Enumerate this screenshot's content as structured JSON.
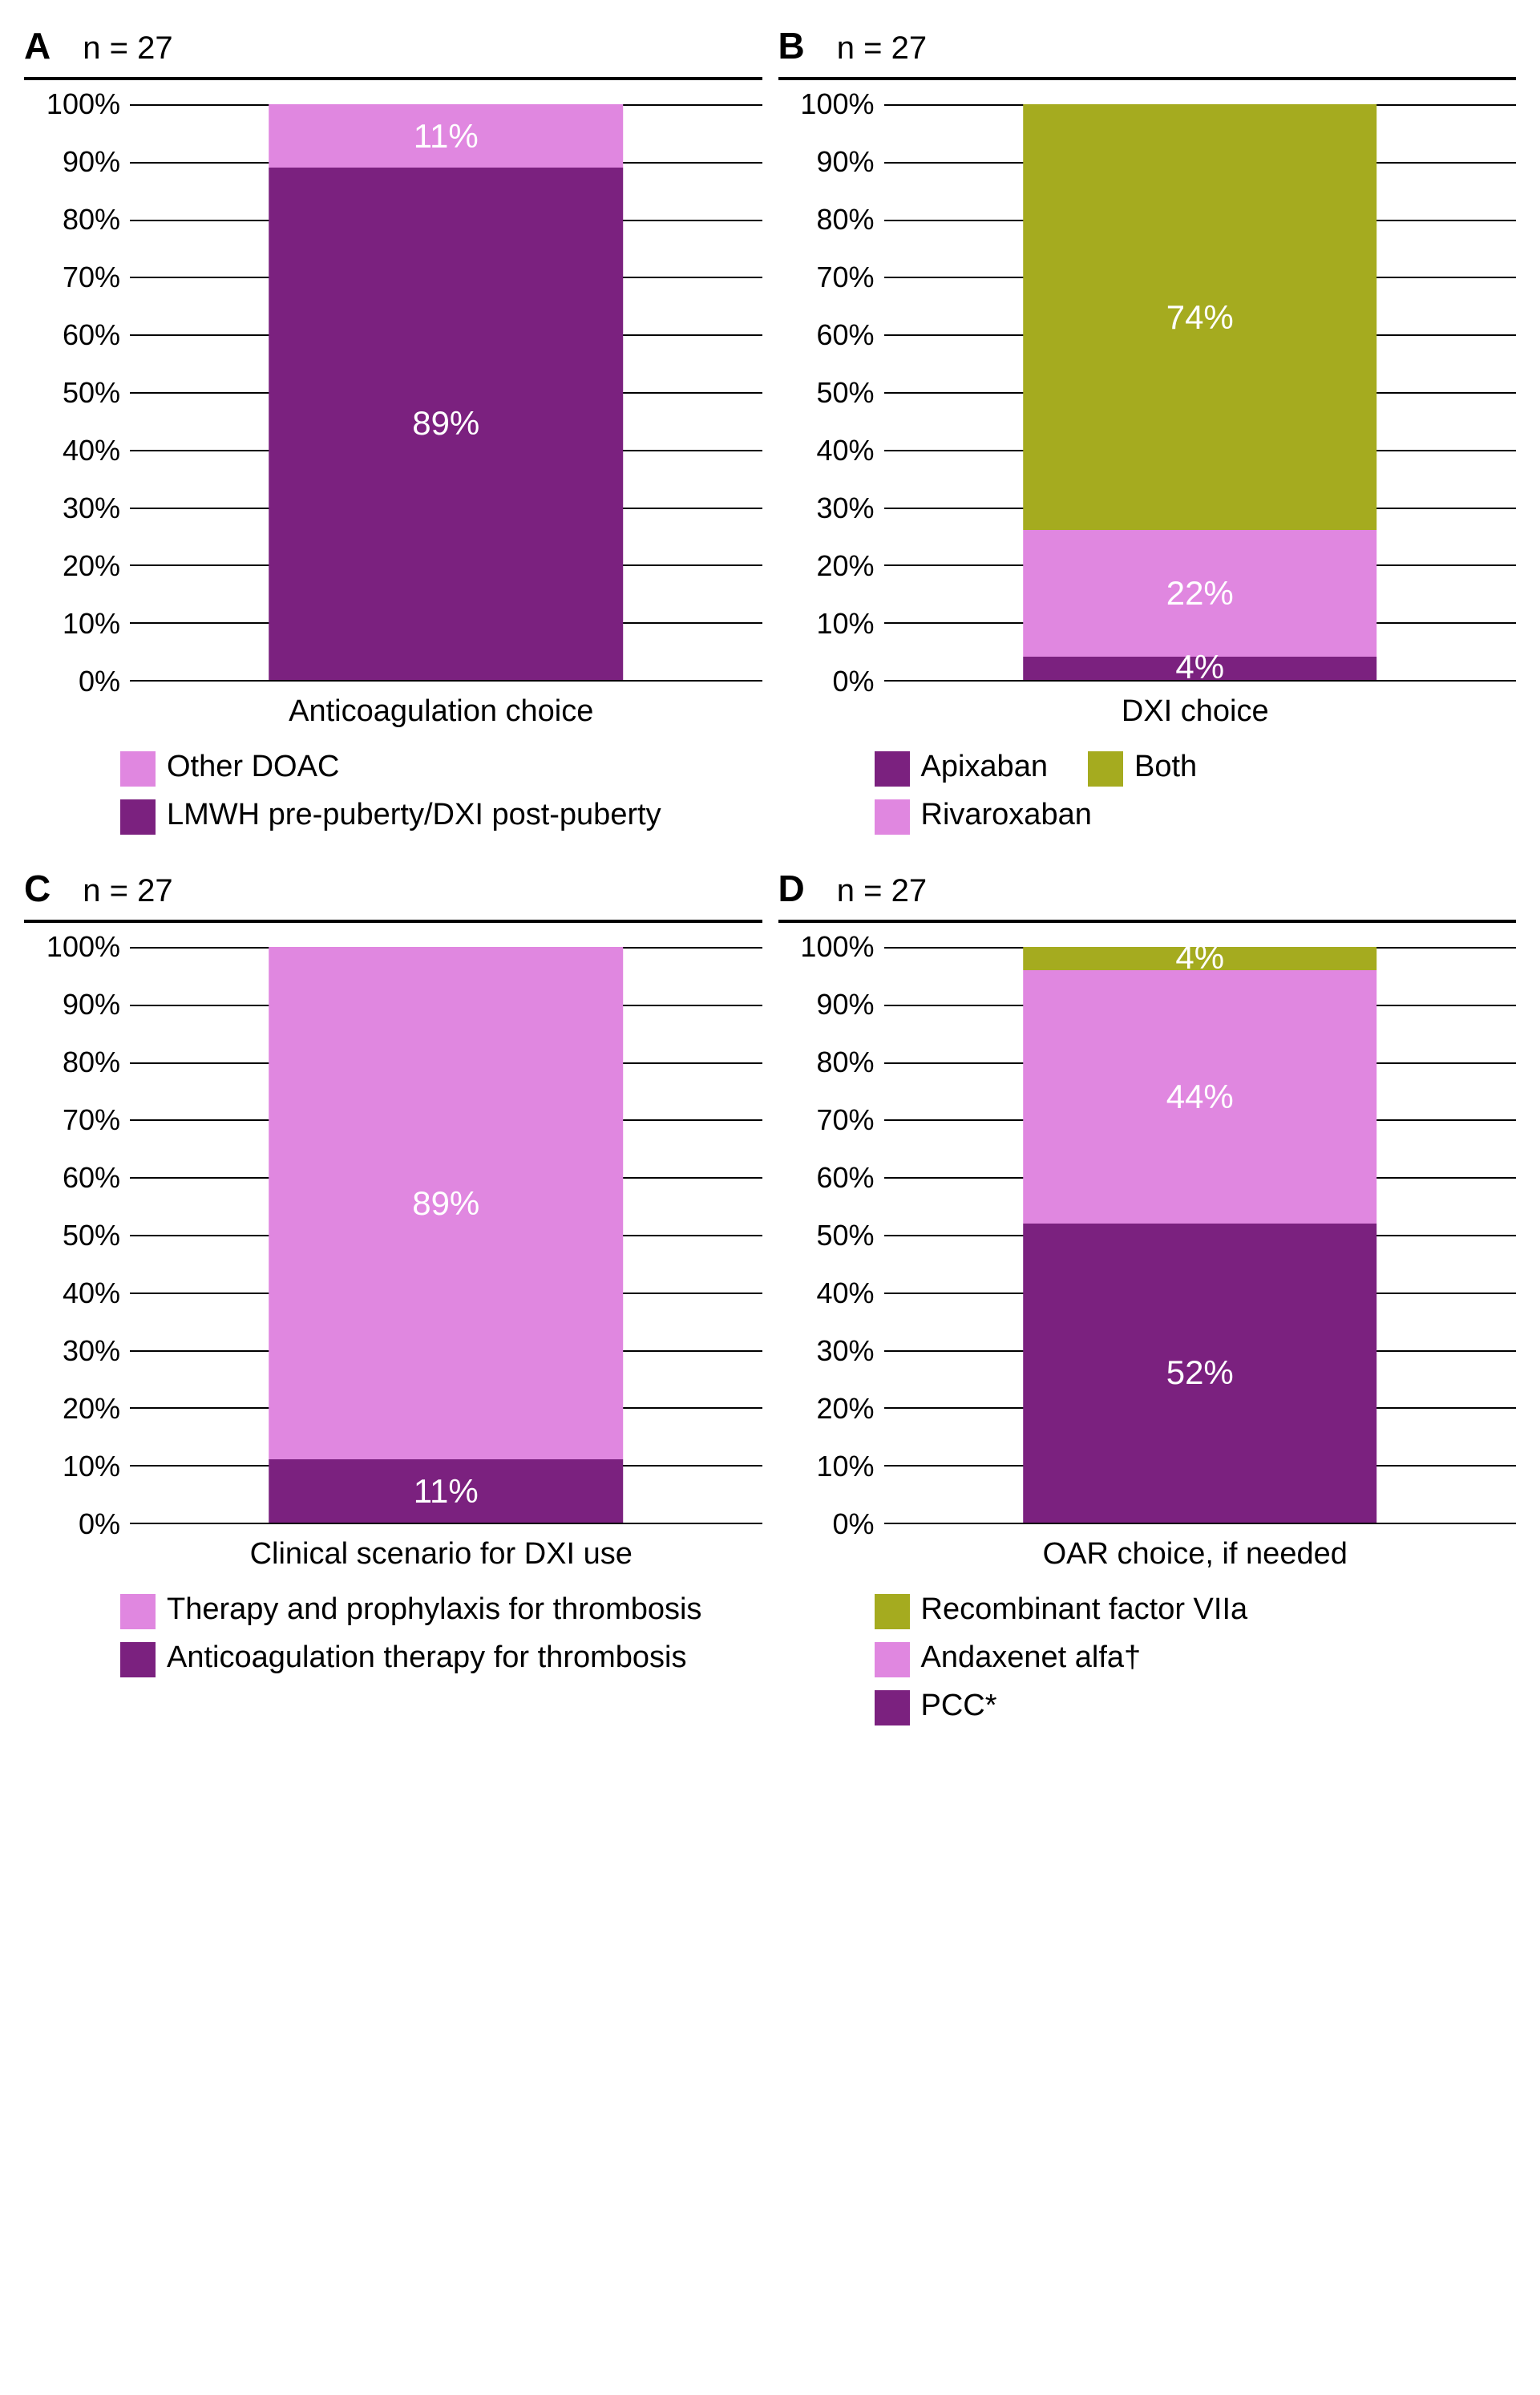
{
  "yAxis": {
    "ticks": [
      "0%",
      "10%",
      "20%",
      "30%",
      "40%",
      "50%",
      "60%",
      "70%",
      "80%",
      "90%",
      "100%"
    ]
  },
  "colors": {
    "darkPurple": "#7b217f",
    "lightPurple": "#e087e0",
    "olive": "#a5ab1f",
    "white": "#ffffff"
  },
  "panels": {
    "A": {
      "letter": "A",
      "n": "n = 27",
      "xLabel": "Anticoagulation choice",
      "segments": [
        {
          "value": 89,
          "label": "89%",
          "colorKey": "darkPurple"
        },
        {
          "value": 11,
          "label": "11%",
          "colorKey": "lightPurple"
        }
      ],
      "legend": [
        {
          "colorKey": "lightPurple",
          "text": "Other DOAC",
          "full": true
        },
        {
          "colorKey": "darkPurple",
          "text": "LMWH pre-puberty/DXI post-puberty",
          "full": true
        }
      ]
    },
    "B": {
      "letter": "B",
      "n": "n = 27",
      "xLabel": "DXI choice",
      "segments": [
        {
          "value": 4,
          "label": "4%",
          "colorKey": "darkPurple",
          "labelOutside": true
        },
        {
          "value": 22,
          "label": "22%",
          "colorKey": "lightPurple"
        },
        {
          "value": 74,
          "label": "74%",
          "colorKey": "olive"
        }
      ],
      "legend": [
        {
          "colorKey": "darkPurple",
          "text": "Apixaban"
        },
        {
          "colorKey": "olive",
          "text": "Both"
        },
        {
          "colorKey": "lightPurple",
          "text": "Rivaroxaban",
          "full": true
        }
      ]
    },
    "C": {
      "letter": "C",
      "n": "n = 27",
      "xLabel": "Clinical scenario for DXI use",
      "segments": [
        {
          "value": 11,
          "label": "11%",
          "colorKey": "darkPurple"
        },
        {
          "value": 89,
          "label": "89%",
          "colorKey": "lightPurple"
        }
      ],
      "legend": [
        {
          "colorKey": "lightPurple",
          "text": "Therapy and prophylaxis for thrombosis",
          "full": true
        },
        {
          "colorKey": "darkPurple",
          "text": "Anticoagulation therapy for thrombosis",
          "full": true
        }
      ]
    },
    "D": {
      "letter": "D",
      "n": "n = 27",
      "xLabel": "OAR choice, if needed",
      "segments": [
        {
          "value": 52,
          "label": "52%",
          "colorKey": "darkPurple"
        },
        {
          "value": 44,
          "label": "44%",
          "colorKey": "lightPurple"
        },
        {
          "value": 4,
          "label": "4%",
          "colorKey": "olive",
          "labelOutside": true
        }
      ],
      "legend": [
        {
          "colorKey": "olive",
          "text": "Recombinant factor VIIa",
          "full": true
        },
        {
          "colorKey": "lightPurple",
          "text": "Andaxenet alfa†",
          "full": true
        },
        {
          "colorKey": "darkPurple",
          "text": "PCC*",
          "full": true
        }
      ]
    }
  }
}
